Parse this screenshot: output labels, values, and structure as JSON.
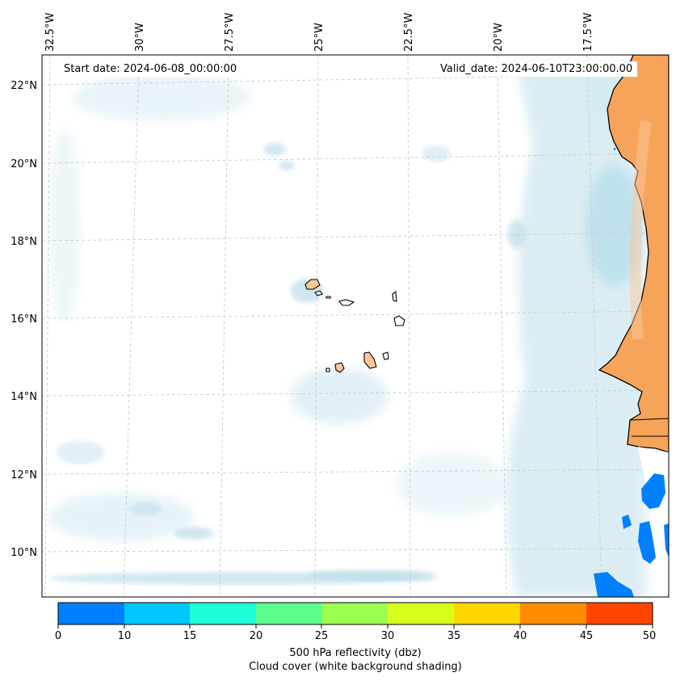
{
  "map": {
    "start_label": "Start date: 2024-06-08_00:00:00",
    "valid_label": "Valid_date: 2024-06-10T23:00:00.00",
    "lon_labels": [
      "32.5°W",
      "30°W",
      "27.5°W",
      "25°W",
      "22.5°W",
      "20°W",
      "17.5°W"
    ],
    "lat_labels": [
      "22°N",
      "20°N",
      "18°N",
      "16°N",
      "14°N",
      "12°N",
      "10°N"
    ],
    "colors": {
      "land": "#f6a45a",
      "land_light": "#f9c79a",
      "cloud": "#cfe7f0",
      "cloud_light": "#e6f2f7",
      "grid": "#c8c8c8"
    }
  },
  "colorbar": {
    "ticks": [
      "0",
      "10",
      "15",
      "20",
      "25",
      "30",
      "35",
      "40",
      "45",
      "50"
    ],
    "colors": [
      "#0080ff",
      "#00c8ff",
      "#1effd8",
      "#5cff8c",
      "#9cff50",
      "#d6ff1e",
      "#ffd700",
      "#ff8c00",
      "#ff4500"
    ],
    "label_line1": "500 hPa reflectivity (dbz)",
    "label_line2": "Cloud cover (white background shading)"
  }
}
